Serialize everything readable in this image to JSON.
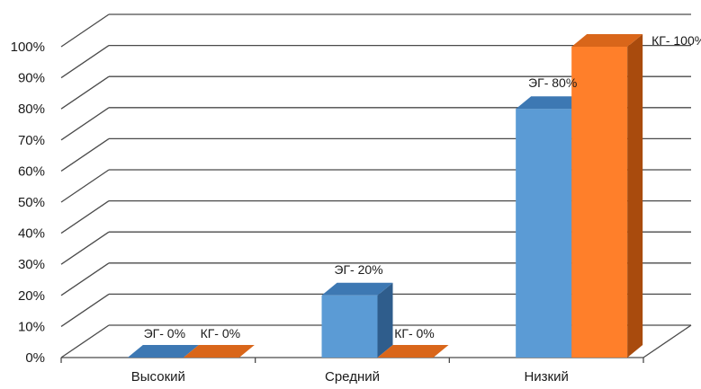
{
  "chart_data": {
    "type": "bar",
    "style": "3d-clustered-column",
    "categories": [
      "Высокий",
      "Средний",
      "Низкий"
    ],
    "series": [
      {
        "name": "ЭГ",
        "values": [
          0,
          20,
          80
        ],
        "labels": [
          "ЭГ- 0%",
          "ЭГ- 20%",
          "ЭГ- 80%"
        ]
      },
      {
        "name": "КГ",
        "values": [
          0,
          0,
          100
        ],
        "labels": [
          "КГ- 0%",
          "КГ- 0%",
          "КГ- 100%"
        ]
      }
    ],
    "y_ticks": [
      "0%",
      "10%",
      "20%",
      "30%",
      "40%",
      "50%",
      "60%",
      "70%",
      "80%",
      "90%",
      "100%"
    ],
    "ylim": [
      0,
      100
    ],
    "grid": true,
    "legend": "none",
    "colors": {
      "series_front": [
        "#5b9bd5",
        "#ff7f2a"
      ],
      "series_top": [
        "#3d78b3",
        "#d9661a"
      ],
      "series_side": [
        "#2f5d8c",
        "#a94b0d"
      ],
      "grid": "#4a4a4a"
    }
  }
}
